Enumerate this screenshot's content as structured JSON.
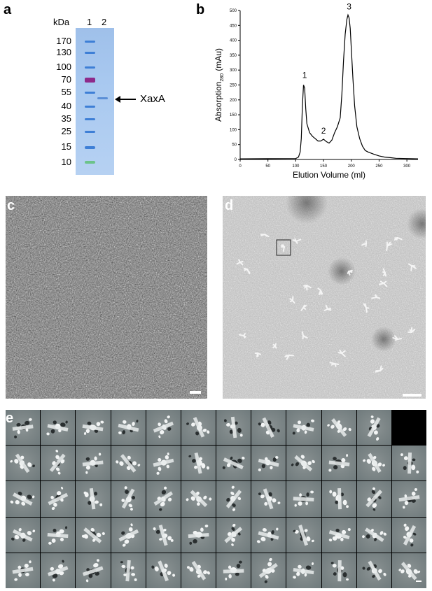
{
  "panels": {
    "a": "a",
    "b": "b",
    "c": "c",
    "d": "d",
    "e": "e"
  },
  "gel": {
    "unit_label": "kDa",
    "lanes": [
      "1",
      "2"
    ],
    "markers": [
      "170",
      "130",
      "100",
      "70",
      "55",
      "40",
      "35",
      "25",
      "15",
      "10"
    ],
    "protein_label": "XaxA",
    "colors": {
      "marker_band": "#3e7fd6",
      "marker_70": "#8e2a8a",
      "marker_10": "#6cc38a",
      "sample_band": "#5b8fd6"
    }
  },
  "chart_data": {
    "type": "line",
    "xlabel": "Elution Volume (ml)",
    "ylabel_main": "Absorption",
    "ylabel_sub": "280",
    "ylabel_unit": "(mAu)",
    "xlim": [
      0,
      320
    ],
    "ylim": [
      0,
      500
    ],
    "x_ticks": [
      "0",
      "50",
      "100",
      "150",
      "200",
      "250",
      "300"
    ],
    "y_ticks": [
      "0",
      "50",
      "100",
      "150",
      "200",
      "250",
      "300",
      "350",
      "400",
      "450",
      "500"
    ],
    "grid": false,
    "series": [
      {
        "color": "#000000",
        "x": [
          0,
          100,
          105,
          108,
          110,
          112,
          114,
          116,
          118,
          120,
          125,
          130,
          135,
          140,
          145,
          150,
          155,
          160,
          165,
          170,
          175,
          180,
          183,
          186,
          189,
          192,
          194,
          196,
          198,
          200,
          203,
          206,
          210,
          215,
          220,
          225,
          230,
          240,
          250,
          260,
          270,
          280,
          300,
          320
        ],
        "y": [
          2,
          3,
          8,
          25,
          70,
          180,
          250,
          240,
          170,
          120,
          90,
          78,
          70,
          62,
          62,
          68,
          60,
          55,
          65,
          90,
          110,
          140,
          220,
          330,
          420,
          470,
          485,
          475,
          440,
          370,
          270,
          180,
          110,
          70,
          45,
          30,
          25,
          18,
          12,
          8,
          6,
          4,
          3,
          2
        ]
      }
    ],
    "peaks": [
      {
        "label": "1",
        "x": 116,
        "y": 255
      },
      {
        "label": "2",
        "x": 150,
        "y": 68
      },
      {
        "label": "3",
        "x": 196,
        "y": 485
      }
    ]
  },
  "scale_bars": {
    "c": "",
    "d": ""
  },
  "class_averages": {
    "rows": 5,
    "cols": 12,
    "empty_cells": [
      11
    ]
  }
}
